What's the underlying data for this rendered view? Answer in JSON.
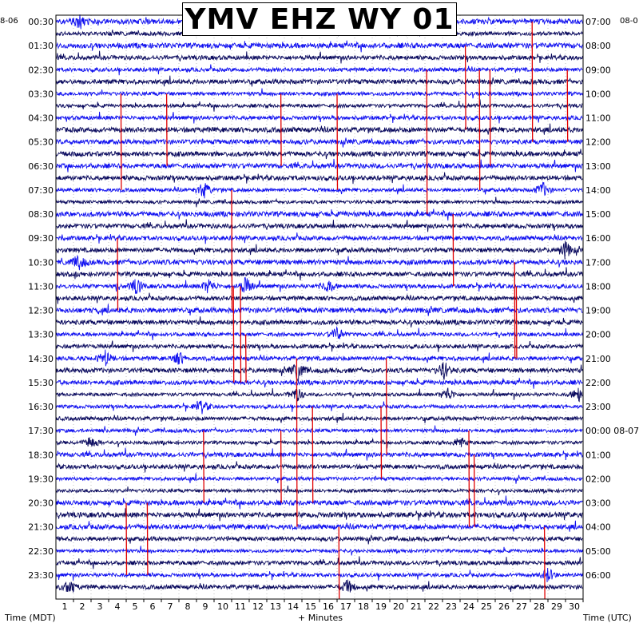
{
  "header": {
    "title": "YMV EHZ WY 01",
    "left_date": "8-06",
    "right_date": "08-0"
  },
  "axes": {
    "left_label": "Time (MDT)",
    "x_label": "+ Minutes",
    "right_label": "Time (UTC)"
  },
  "colors": {
    "trace_dark": "#0a0a5e",
    "trace_blue": "#1010f0",
    "event_red": "#e00000",
    "grid": "#999999",
    "background": "#ffffff"
  },
  "chart_data": {
    "type": "line",
    "plot_kind": "helicorder",
    "x_ticks": [
      1,
      2,
      3,
      4,
      5,
      6,
      7,
      8,
      9,
      10,
      11,
      12,
      13,
      14,
      15,
      16,
      17,
      18,
      19,
      20,
      21,
      22,
      23,
      24,
      25,
      26,
      27,
      28,
      29,
      30
    ],
    "xlim": [
      0,
      30
    ],
    "left_times": [
      "00:30",
      "01:30",
      "02:30",
      "03:30",
      "04:30",
      "05:30",
      "06:30",
      "07:30",
      "08:30",
      "09:30",
      "10:30",
      "11:30",
      "12:30",
      "13:30",
      "14:30",
      "15:30",
      "16:30",
      "17:30",
      "18:30",
      "19:30",
      "20:30",
      "21:30",
      "22:30",
      "23:30"
    ],
    "right_times": [
      "07:00",
      "08:00",
      "09:00",
      "10:00",
      "11:00",
      "12:00",
      "13:00",
      "14:00",
      "15:00",
      "16:00",
      "17:00",
      "18:00",
      "19:00",
      "20:00",
      "21:00",
      "22:00",
      "23:00",
      "00:00 08-07",
      "01:00",
      "02:00",
      "03:00",
      "04:00",
      "05:00",
      "06:00"
    ],
    "events": [
      {
        "minute": 3.7,
        "from_row": 6,
        "to_row": 14
      },
      {
        "minute": 6.3,
        "from_row": 6,
        "to_row": 12
      },
      {
        "minute": 12.8,
        "from_row": 6,
        "to_row": 12
      },
      {
        "minute": 16.0,
        "from_row": 6,
        "to_row": 14
      },
      {
        "minute": 21.1,
        "from_row": 4,
        "to_row": 16
      },
      {
        "minute": 23.3,
        "from_row": 2,
        "to_row": 9
      },
      {
        "minute": 24.1,
        "from_row": 4,
        "to_row": 14
      },
      {
        "minute": 24.7,
        "from_row": 4,
        "to_row": 12
      },
      {
        "minute": 27.1,
        "from_row": 0,
        "to_row": 10
      },
      {
        "minute": 29.1,
        "from_row": 4,
        "to_row": 10
      },
      {
        "minute": 10.0,
        "from_row": 14,
        "to_row": 24
      },
      {
        "minute": 10.1,
        "from_row": 22,
        "to_row": 30
      },
      {
        "minute": 3.5,
        "from_row": 18,
        "to_row": 24
      },
      {
        "minute": 22.6,
        "from_row": 16,
        "to_row": 22
      },
      {
        "minute": 26.1,
        "from_row": 20,
        "to_row": 28
      },
      {
        "minute": 10.5,
        "from_row": 22,
        "to_row": 30
      },
      {
        "minute": 10.8,
        "from_row": 26,
        "to_row": 30
      },
      {
        "minute": 26.2,
        "from_row": 22,
        "to_row": 28
      },
      {
        "minute": 13.7,
        "from_row": 28,
        "to_row": 42
      },
      {
        "minute": 18.8,
        "from_row": 28,
        "to_row": 36
      },
      {
        "minute": 14.6,
        "from_row": 32,
        "to_row": 40
      },
      {
        "minute": 18.5,
        "from_row": 32,
        "to_row": 38
      },
      {
        "minute": 23.5,
        "from_row": 34,
        "to_row": 42
      },
      {
        "minute": 8.4,
        "from_row": 34,
        "to_row": 40
      },
      {
        "minute": 12.8,
        "from_row": 34,
        "to_row": 40
      },
      {
        "minute": 23.8,
        "from_row": 36,
        "to_row": 42
      },
      {
        "minute": 5.2,
        "from_row": 40,
        "to_row": 46
      },
      {
        "minute": 4.0,
        "from_row": 40,
        "to_row": 46
      },
      {
        "minute": 16.1,
        "from_row": 42,
        "to_row": 48
      },
      {
        "minute": 27.8,
        "from_row": 42,
        "to_row": 48
      }
    ],
    "bursts": [
      {
        "row": 0,
        "minute": 1.4,
        "amp": 1.6
      },
      {
        "row": 14,
        "minute": 8.4,
        "amp": 1.8
      },
      {
        "row": 14,
        "minute": 27.7,
        "amp": 1.6
      },
      {
        "row": 19,
        "minute": 29.0,
        "amp": 1.8
      },
      {
        "row": 20,
        "minute": 1.3,
        "amp": 1.6
      },
      {
        "row": 22,
        "minute": 4.6,
        "amp": 1.7
      },
      {
        "row": 22,
        "minute": 8.7,
        "amp": 1.5
      },
      {
        "row": 22,
        "minute": 10.8,
        "amp": 1.8
      },
      {
        "row": 22,
        "minute": 15.5,
        "amp": 1.3
      },
      {
        "row": 26,
        "minute": 16.0,
        "amp": 1.5
      },
      {
        "row": 28,
        "minute": 2.8,
        "amp": 1.6
      },
      {
        "row": 28,
        "minute": 7.0,
        "amp": 1.3
      },
      {
        "row": 29,
        "minute": 13.8,
        "amp": 2.0
      },
      {
        "row": 29,
        "minute": 22.1,
        "amp": 1.8
      },
      {
        "row": 31,
        "minute": 13.7,
        "amp": 1.6
      },
      {
        "row": 31,
        "minute": 22.3,
        "amp": 1.5
      },
      {
        "row": 31,
        "minute": 29.7,
        "amp": 1.6
      },
      {
        "row": 32,
        "minute": 8.3,
        "amp": 1.3
      },
      {
        "row": 35,
        "minute": 2.0,
        "amp": 1.4
      },
      {
        "row": 35,
        "minute": 23.0,
        "amp": 1.3
      },
      {
        "row": 47,
        "minute": 0.8,
        "amp": 1.4
      },
      {
        "row": 47,
        "minute": 16.6,
        "amp": 1.5
      },
      {
        "row": 46,
        "minute": 28.0,
        "amp": 1.6
      }
    ]
  }
}
